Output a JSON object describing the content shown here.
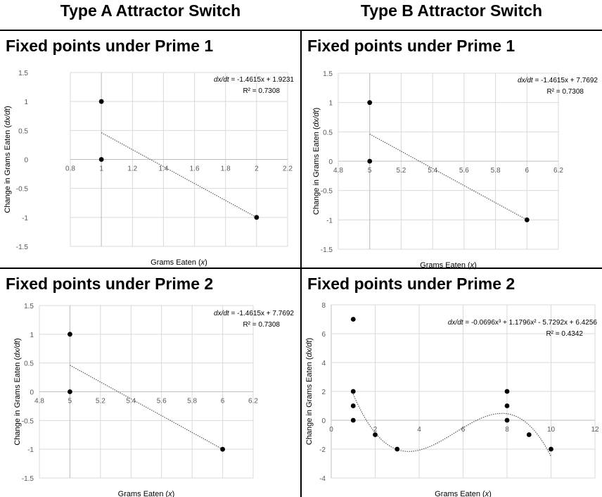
{
  "column_titles": {
    "type_a": "Type A Attractor Switch",
    "type_b": "Type B Attractor Switch"
  },
  "panel_titles": {
    "a1": "Fixed points under Prime 1",
    "b1": "Fixed points under Prime 1",
    "a2": "Fixed points under Prime 2",
    "b2": "Fixed points under Prime 2"
  },
  "chart_data": [
    {
      "id": "a1",
      "type": "scatter",
      "title": "Fixed points under Prime 1",
      "xlabel": "Grams Eaten (x)",
      "ylabel": "Change in Grams Eaten (dx/dt)",
      "xlim": [
        0.8,
        2.2
      ],
      "ylim": [
        -1.5,
        1.5
      ],
      "xticks": [
        0.8,
        1,
        1.2,
        1.4,
        1.6,
        1.8,
        2,
        2.2
      ],
      "xtick_labels": [
        "0.8",
        "1",
        "1.2",
        "1.4",
        "1.6",
        "1.8",
        "2",
        "2.2"
      ],
      "yticks": [
        -1.5,
        -1,
        -0.5,
        0,
        0.5,
        1,
        1.5
      ],
      "ytick_labels": [
        "-1.5",
        "-1",
        "-0.5",
        "0",
        "0.5",
        "1",
        "1.5"
      ],
      "points": [
        {
          "x": 1,
          "y": 1
        },
        {
          "x": 1,
          "y": 0
        },
        {
          "x": 2,
          "y": -1
        }
      ],
      "trendline": {
        "kind": "linear",
        "coefficients": [
          -1.4615,
          1.9231
        ],
        "x_range": [
          1,
          2
        ]
      },
      "equation": {
        "prefix": "dx/dt",
        "rest": " = -1.4615x + 1.9231",
        "r2": "R² = 0.7308"
      }
    },
    {
      "id": "b1",
      "type": "scatter",
      "title": "Fixed points under Prime 1",
      "xlabel": "Grams Eaten (x)",
      "ylabel": "Change in Grams Eaten (dx/dt)",
      "xlim": [
        4.8,
        6.2
      ],
      "ylim": [
        -1.5,
        1.5
      ],
      "xticks": [
        4.8,
        5,
        5.2,
        5.4,
        5.6,
        5.8,
        6,
        6.2
      ],
      "xtick_labels": [
        "4.8",
        "5",
        "5.2",
        "5.4",
        "5.6",
        "5.8",
        "6",
        "6.2"
      ],
      "yticks": [
        -1.5,
        -1,
        -0.5,
        0,
        0.5,
        1,
        1.5
      ],
      "ytick_labels": [
        "-1.5",
        "-1",
        "-0.5",
        "0",
        "0.5",
        "1",
        "1.5"
      ],
      "points": [
        {
          "x": 5,
          "y": 1
        },
        {
          "x": 5,
          "y": 0
        },
        {
          "x": 6,
          "y": -1
        }
      ],
      "trendline": {
        "kind": "linear",
        "coefficients": [
          -1.4615,
          7.7692
        ],
        "x_range": [
          5,
          6
        ]
      },
      "equation": {
        "prefix": "dx/dt",
        "rest": " = -1.4615x + 7.7692",
        "r2": "R² = 0.7308"
      }
    },
    {
      "id": "a2",
      "type": "scatter",
      "title": "Fixed points under Prime 2",
      "xlabel": "Grams Eaten (x)",
      "ylabel": "Change in Grams Eaten (dx/dt)",
      "xlim": [
        4.8,
        6.2
      ],
      "ylim": [
        -1.5,
        1.5
      ],
      "xticks": [
        4.8,
        5,
        5.2,
        5.4,
        5.6,
        5.8,
        6,
        6.2
      ],
      "xtick_labels": [
        "4.8",
        "5",
        "5.2",
        "5.4",
        "5.6",
        "5.8",
        "6",
        "6.2"
      ],
      "yticks": [
        -1.5,
        -1,
        -0.5,
        0,
        0.5,
        1,
        1.5
      ],
      "ytick_labels": [
        "-1.5",
        "-1",
        "-0.5",
        "0",
        "0.5",
        "1",
        "1.5"
      ],
      "points": [
        {
          "x": 5,
          "y": 1
        },
        {
          "x": 5,
          "y": 0
        },
        {
          "x": 6,
          "y": -1
        }
      ],
      "trendline": {
        "kind": "linear",
        "coefficients": [
          -1.4615,
          7.7692
        ],
        "x_range": [
          5,
          6
        ]
      },
      "equation": {
        "prefix": "dx/dt",
        "rest": " = -1.4615x + 7.7692",
        "r2": "R² = 0.7308"
      }
    },
    {
      "id": "b2",
      "type": "scatter",
      "title": "Fixed points under Prime 2",
      "xlabel": "Grams Eaten (x)",
      "ylabel": "Change in Grams Eaten (dx/dt)",
      "xlim": [
        0,
        12
      ],
      "ylim": [
        -4,
        8
      ],
      "xticks": [
        0,
        2,
        4,
        6,
        8,
        10,
        12
      ],
      "xtick_labels": [
        "0",
        "2",
        "4",
        "6",
        "8",
        "10",
        "12"
      ],
      "yticks": [
        -4,
        -2,
        0,
        2,
        4,
        6,
        8
      ],
      "ytick_labels": [
        "-4",
        "-2",
        "0",
        "2",
        "4",
        "6",
        "8"
      ],
      "points": [
        {
          "x": 1,
          "y": 7
        },
        {
          "x": 1,
          "y": 2
        },
        {
          "x": 1,
          "y": 1
        },
        {
          "x": 1,
          "y": 0
        },
        {
          "x": 2,
          "y": -1
        },
        {
          "x": 3,
          "y": -2
        },
        {
          "x": 8,
          "y": 2
        },
        {
          "x": 8,
          "y": 1
        },
        {
          "x": 8,
          "y": 0
        },
        {
          "x": 9,
          "y": -1
        },
        {
          "x": 10,
          "y": -2
        }
      ],
      "trendline": {
        "kind": "cubic",
        "coefficients": [
          -0.0696,
          1.1796,
          -5.7292,
          6.4256
        ],
        "x_range": [
          1,
          10
        ]
      },
      "equation": {
        "prefix": "dx/dt",
        "rest": " = -0.0696x³ + 1.1796x² - 5.7292x + 6.4256",
        "r2": "R² = 0.4342"
      }
    }
  ]
}
